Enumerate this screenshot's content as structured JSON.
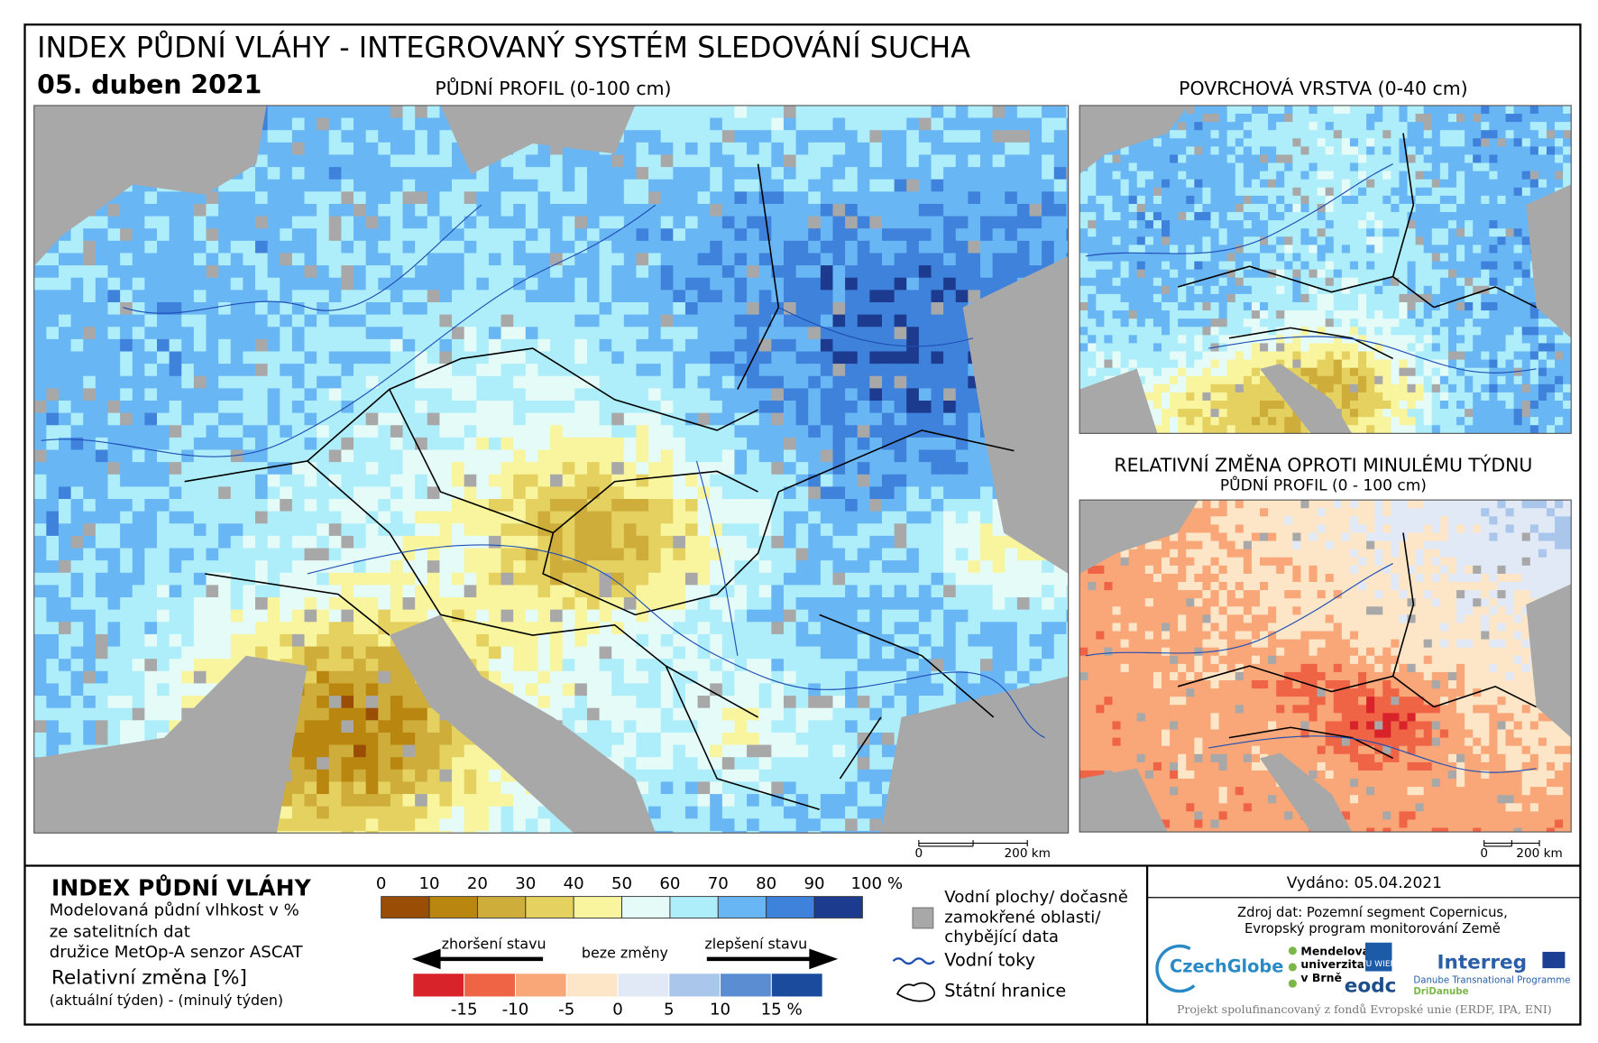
{
  "header": {
    "title": "INDEX PŮDNÍ VLÁHY - INTEGROVANÝ SYSTÉM SLEDOVÁNÍ SUCHA",
    "date": "05. duben 2021"
  },
  "maps": {
    "main_title": "PŮDNÍ PROFIL (0-100 cm)",
    "surface_title": "POVRCHOVÁ VRSTVA (0-40 cm)",
    "change_title": "RELATIVNÍ ZMĚNA OPROTI MINULÉMU TÝDNU",
    "change_subtitle": "PŮDNÍ PROFIL (0 - 100 cm)"
  },
  "scale_bar": {
    "ticks": [
      0,
      {
        "value": 200,
        "label": "200 km"
      }
    ]
  },
  "legend": {
    "title": "INDEX PŮDNÍ VLÁHY",
    "description": [
      "Modelovaná půdní vlhkost v %",
      "ze satelitních dat",
      "družice MetOp-A senzor ASCAT"
    ],
    "change_title": "Relativní změna [%]",
    "change_note": "(aktuální týden) - (minulý týden)",
    "moisture": {
      "ticks": [
        0,
        10,
        20,
        30,
        40,
        50,
        60,
        70,
        80,
        90,
        {
          "value": 100,
          "label": "100 %"
        }
      ],
      "colors": [
        "#9a4d05",
        "#b9860f",
        "#cfad3a",
        "#e4d160",
        "#f8f59e",
        "#e4fbf8",
        "#aeeefa",
        "#69b6f5",
        "#3e82dc",
        "#1c3a8e"
      ]
    },
    "change": {
      "ticks": [
        -15,
        -10,
        -5,
        0,
        5,
        10,
        {
          "value": 15,
          "label": "15 %"
        }
      ],
      "colors": [
        "#d9232a",
        "#f06446",
        "#f9a678",
        "#fde6c8",
        "#e0e9f5",
        "#aac6ea",
        "#5a8dd2",
        "#1b4b9c"
      ],
      "worse": "zhoršení stavu",
      "none": "beze změny",
      "better": "zlepšení stavu"
    },
    "symbols": {
      "water": [
        "Vodní plochy/ dočasně",
        "zamokřené oblasti/",
        "chybějící data"
      ],
      "rivers": "Vodní toky",
      "borders": "Státní hranice"
    }
  },
  "credits": {
    "issued": "Vydáno: 05.04.2021",
    "source": [
      "Zdroj dat: Pozemní segment Copernicus,",
      "Evropský program monitorování Země"
    ],
    "logos": [
      "CzechGlobe",
      "Mendelova",
      "univerzita",
      "v Brně",
      "TU WIEN",
      "eodc",
      "Interreg",
      "Danube Transnational Programme",
      "DriDanube"
    ],
    "footer": "Projekt spolufinancovaný z fondů Evropské unie (ERDF, IPA, ENI)"
  }
}
